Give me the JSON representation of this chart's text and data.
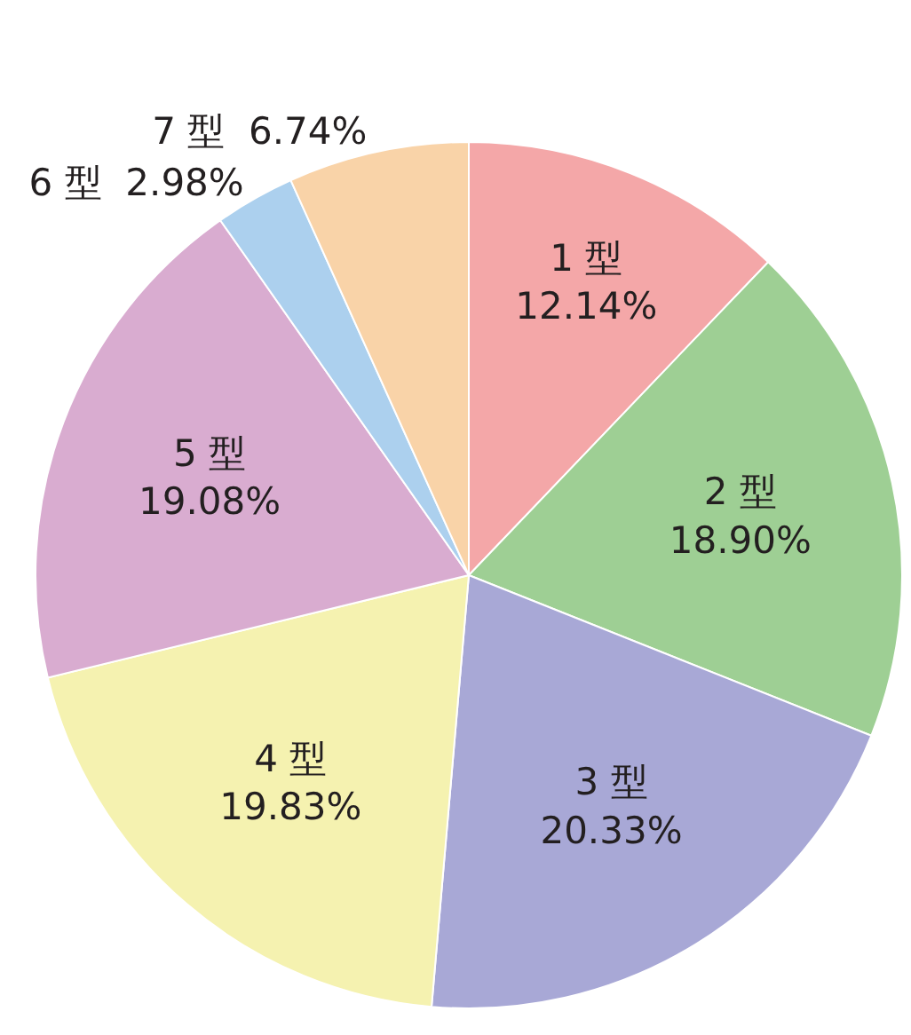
{
  "chart_data": {
    "type": "pie",
    "categories": [
      "1 型",
      "2 型",
      "3 型",
      "4 型",
      "5 型",
      "6 型",
      "7 型"
    ],
    "values": [
      12.14,
      18.9,
      20.33,
      19.83,
      19.08,
      2.98,
      6.74
    ],
    "value_labels": [
      "12.14%",
      "18.90%",
      "20.33%",
      "19.83%",
      "19.08%",
      "2.98%",
      "6.74%"
    ],
    "colors": [
      "#f4a7a8",
      "#9ecf94",
      "#a8a8d6",
      "#f5f2b0",
      "#d9acd0",
      "#acd0ee",
      "#f9d3a8"
    ],
    "legend": false
  }
}
